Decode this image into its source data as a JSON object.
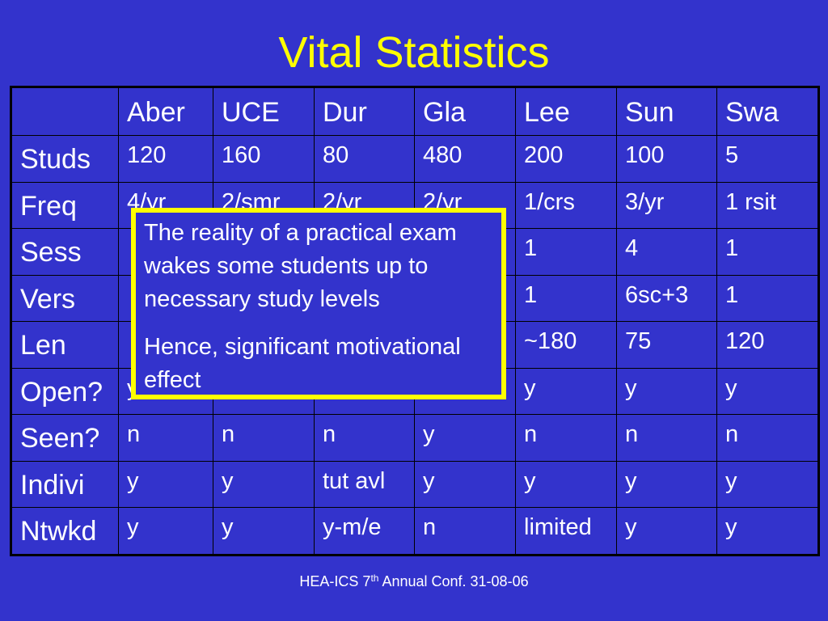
{
  "slide": {
    "title": "Vital Statistics",
    "colors": {
      "background": "#3333cc",
      "title": "#ffff00",
      "text": "#ffffff",
      "callout_border": "#ffff00"
    }
  },
  "table": {
    "columns": [
      "",
      "Aber",
      "UCE",
      "Dur",
      "Gla",
      "Lee",
      "Sun",
      "Swa"
    ],
    "rows": [
      {
        "label": "Studs",
        "cells": [
          "120",
          "160",
          "80",
          "480",
          "200",
          "100",
          "5"
        ]
      },
      {
        "label": "Freq",
        "cells": [
          "4/yr",
          "2/smr",
          "2/yr",
          "2/yr",
          "1/crs",
          "3/yr",
          "1 rsit"
        ]
      },
      {
        "label": "Sess",
        "cells": [
          "",
          "",
          "",
          "",
          "1",
          "4",
          "1"
        ]
      },
      {
        "label": "Vers",
        "cells": [
          "",
          "",
          "",
          "",
          "1",
          "6sc+3",
          "1"
        ]
      },
      {
        "label": "Len",
        "cells": [
          "",
          "",
          "",
          "",
          "~180",
          "75",
          "120"
        ]
      },
      {
        "label": "Open?",
        "cells": [
          "y",
          "",
          "",
          "",
          "y",
          "y",
          "y"
        ]
      },
      {
        "label": "Seen?",
        "cells": [
          "n",
          "n",
          "n",
          "y",
          "n",
          "n",
          "n"
        ]
      },
      {
        "label": "Indivi",
        "cells": [
          "y",
          "y",
          "tut avl",
          "y",
          "y",
          "y",
          "y"
        ]
      },
      {
        "label": "Ntwkd",
        "cells": [
          "y",
          "y",
          "y-m/e",
          "n",
          "limited",
          "y",
          "y"
        ]
      }
    ]
  },
  "callout": {
    "paragraph1": "The reality of a practical exam wakes some students up to necessary study levels",
    "paragraph2": "Hence, significant motivational effect"
  },
  "footer": {
    "prefix": "HEA-ICS 7",
    "superscript": "th",
    "suffix": " Annual Conf. 31-08-06"
  }
}
